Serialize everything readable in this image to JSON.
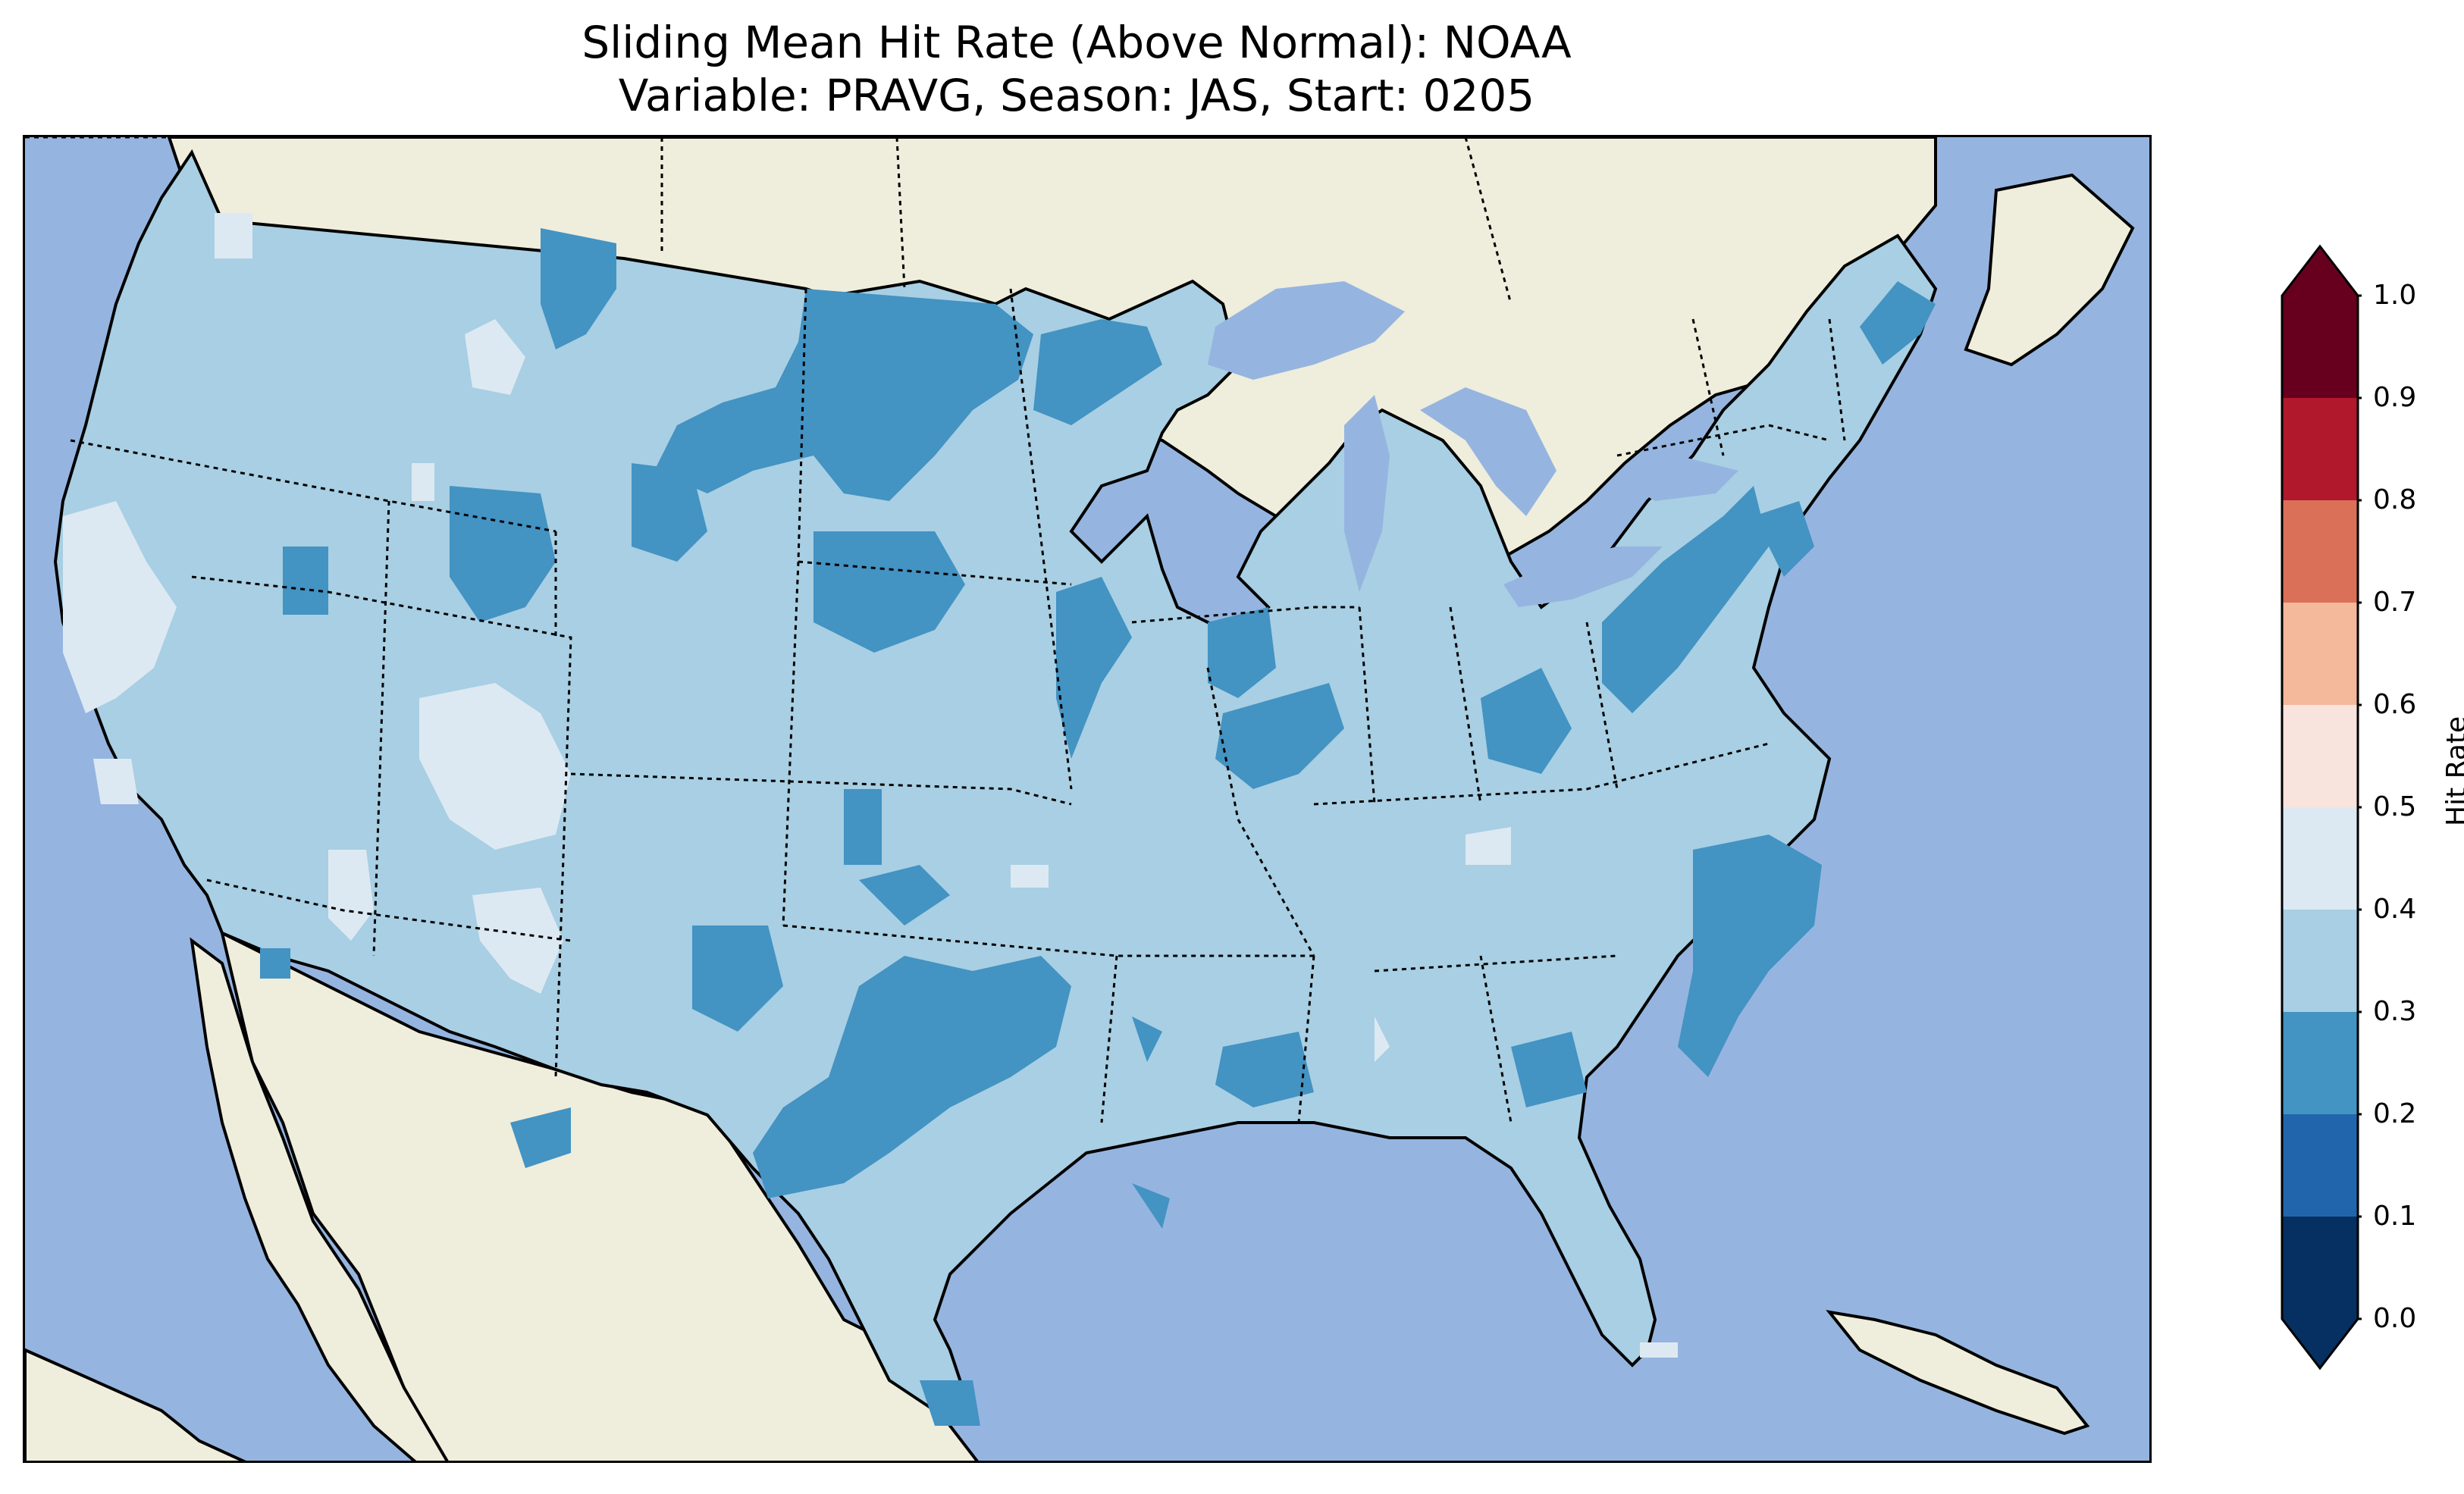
{
  "title": {
    "line1": "Sliding Mean Hit Rate (Above Normal): NOAA",
    "line2": "Variable: PRAVG, Season: JAS, Start: 0205"
  },
  "colors": {
    "ocean": "#95b5e0",
    "land": "#efeddc",
    "lakes": "#95b5e0"
  },
  "colorbar": {
    "label": "Hit Rate",
    "ticks": [
      "0.0",
      "0.1",
      "0.2",
      "0.3",
      "0.4",
      "0.5",
      "0.6",
      "0.7",
      "0.8",
      "0.9",
      "1.0"
    ],
    "bins": [
      {
        "from": 0.0,
        "to": 0.1,
        "color": "#053061"
      },
      {
        "from": 0.1,
        "to": 0.2,
        "color": "#2166ac"
      },
      {
        "from": 0.2,
        "to": 0.3,
        "color": "#4393c3"
      },
      {
        "from": 0.3,
        "to": 0.4,
        "color": "#a8cfe3"
      },
      {
        "from": 0.4,
        "to": 0.5,
        "color": "#dde9f2"
      },
      {
        "from": 0.5,
        "to": 0.6,
        "color": "#f8e4dc"
      },
      {
        "from": 0.6,
        "to": 0.7,
        "color": "#f4b89a"
      },
      {
        "from": 0.7,
        "to": 0.8,
        "color": "#db7059"
      },
      {
        "from": 0.8,
        "to": 0.9,
        "color": "#b2182b"
      },
      {
        "from": 0.9,
        "to": 1.0,
        "color": "#67001f"
      }
    ],
    "extend": "both"
  },
  "map": {
    "projection": "Conterminous United States",
    "dominant_value_range": [
      0.3,
      0.4
    ],
    "regions_0_2_to_0_3": [
      "Northern Plains",
      "Southwest Texas",
      "Carolinas",
      "Ohio / Pennsylvania",
      "Maine coast",
      "Idaho",
      "Iowa",
      "Illinois",
      "Kentucky",
      "Georgia",
      "Mississippi",
      "South Texas tip"
    ],
    "regions_0_4_to_0_5": [
      "Northern California coast",
      "Utah / Nevada",
      "Northwest Arizona",
      "Northern Idaho",
      "Tennessee",
      "Oklahoma panhandle",
      "Alabama"
    ]
  }
}
